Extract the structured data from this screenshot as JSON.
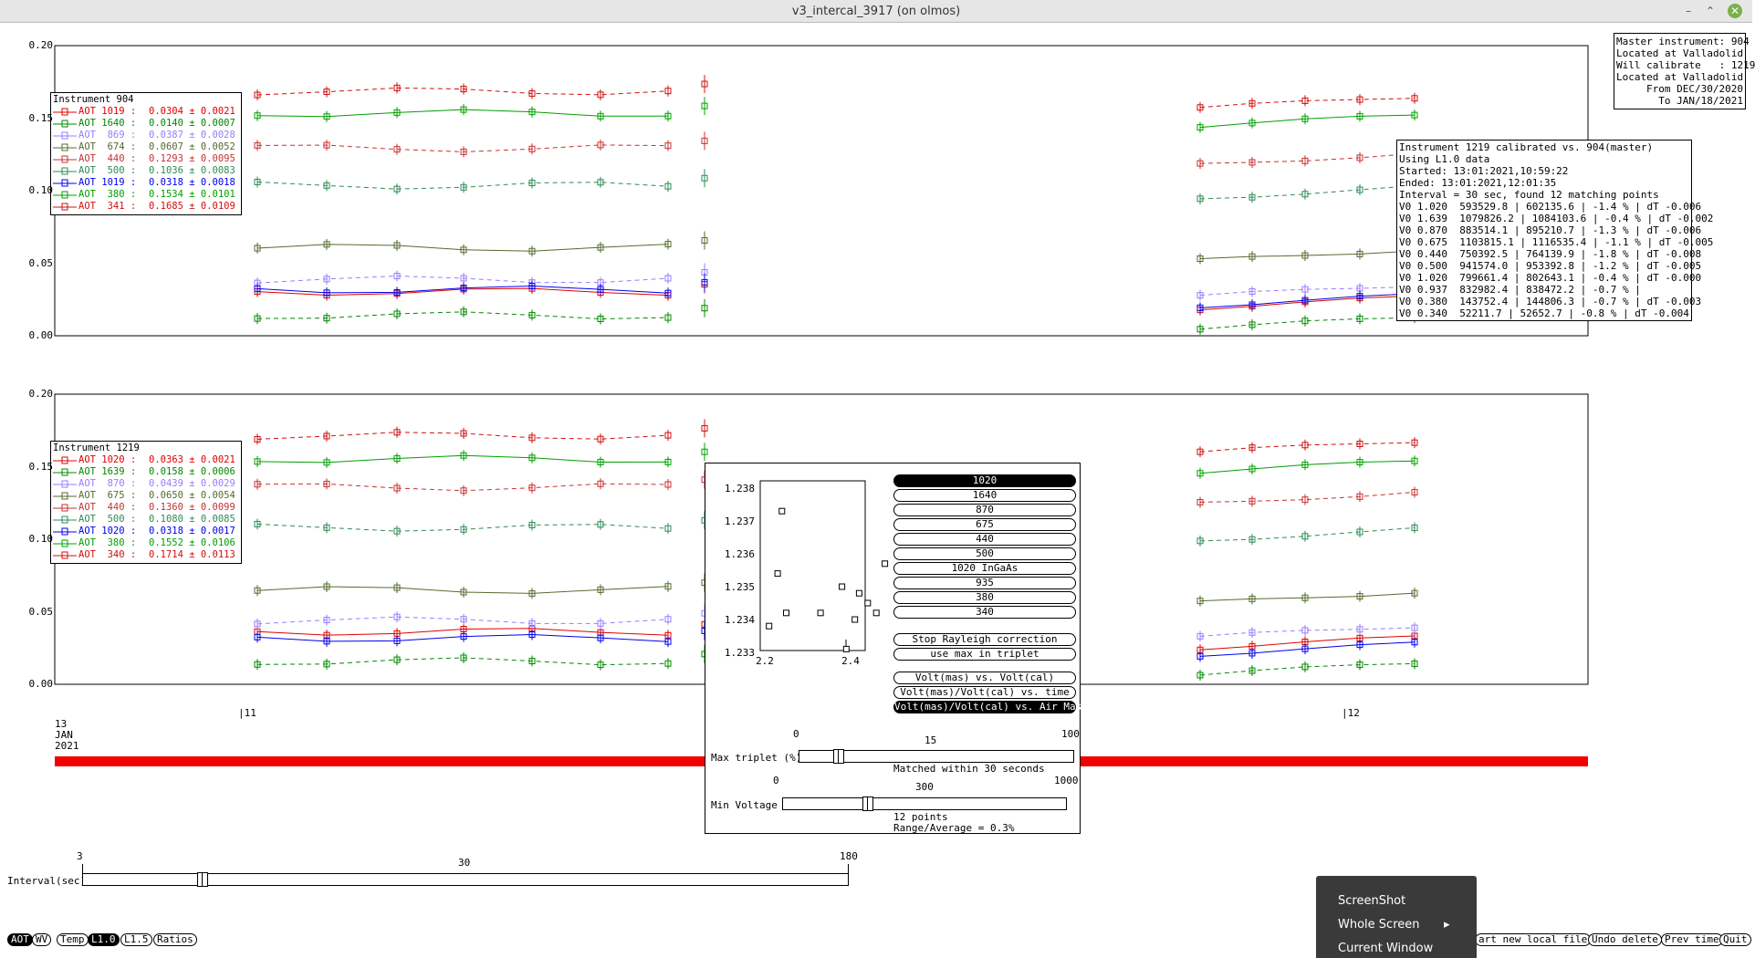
{
  "window": {
    "title": "v3_intercal_3917 (on olmos)"
  },
  "yticks": [
    "0.20",
    "0.15",
    "0.10",
    "0.05",
    "0.00"
  ],
  "xaxis": {
    "day_label": "13\nJAN\n2021",
    "ticks": [
      "|11",
      "|12"
    ]
  },
  "legend_top": {
    "title": "Instrument 904",
    "rows": [
      {
        "name": "AOT 1019 :",
        "value": "0.0304 ± 0.0021",
        "color": "#e00000"
      },
      {
        "name": "AOT 1640 :",
        "value": "0.0140 ± 0.0007",
        "color": "#008800"
      },
      {
        "name": "AOT  869 :",
        "value": "0.0387 ± 0.0028",
        "color": "#9b7bff"
      },
      {
        "name": "AOT  674 :",
        "value": "0.0607 ± 0.0052",
        "color": "#556b2f"
      },
      {
        "name": "AOT  440 :",
        "value": "0.1293 ± 0.0095",
        "color": "#c83232"
      },
      {
        "name": "AOT  500 :",
        "value": "0.1036 ± 0.0083",
        "color": "#2e8b57"
      },
      {
        "name": "AOT 1019 :",
        "value": "0.0318 ± 0.0018",
        "color": "#0000ee"
      },
      {
        "name": "AOT  380 :",
        "value": "0.1534 ± 0.0101",
        "color": "#00a000"
      },
      {
        "name": "AOT  341 :",
        "value": "0.1685 ± 0.0109",
        "color": "#d01010"
      }
    ]
  },
  "legend_bottom": {
    "title": "Instrument 1219",
    "rows": [
      {
        "name": "AOT 1020 :",
        "value": "0.0363 ± 0.0021",
        "color": "#e00000"
      },
      {
        "name": "AOT 1639 :",
        "value": "0.0158 ± 0.0006",
        "color": "#008800"
      },
      {
        "name": "AOT  870 :",
        "value": "0.0439 ± 0.0029",
        "color": "#9b7bff"
      },
      {
        "name": "AOT  675 :",
        "value": "0.0650 ± 0.0054",
        "color": "#556b2f"
      },
      {
        "name": "AOT  440 :",
        "value": "0.1360 ± 0.0099",
        "color": "#c83232"
      },
      {
        "name": "AOT  500 :",
        "value": "0.1080 ± 0.0085",
        "color": "#2e8b57"
      },
      {
        "name": "AOT 1020 :",
        "value": "0.0318 ± 0.0017",
        "color": "#0000ee"
      },
      {
        "name": "AOT  380 :",
        "value": "0.1552 ± 0.0106",
        "color": "#00a000"
      },
      {
        "name": "AOT  340 :",
        "value": "0.1714 ± 0.0113",
        "color": "#d01010"
      }
    ]
  },
  "master_info": [
    "Master instrument: 904",
    "Located at Valladolid",
    "Will calibrate   : 1219",
    "Located at Valladolid",
    "From DEC/30/2020",
    "To JAN/18/2021"
  ],
  "calib_info": [
    "Instrument 1219 calibrated vs. 904(master)",
    "Using L1.0 data",
    "Started: 13:01:2021,10:59:22",
    "Ended: 13:01:2021,12:01:35",
    "Interval = 30 sec, found 12 matching points",
    "V0 1.020  593529.8 | 602135.6 | -1.4 % | dT -0.006",
    "V0 1.639  1079826.2 | 1084103.6 | -0.4 % | dT -0.002",
    "V0 0.870  883514.1 | 895210.7 | -1.3 % | dT -0.006",
    "V0 0.675  1103815.1 | 1116535.4 | -1.1 % | dT -0.005",
    "V0 0.440  750392.5 | 764139.9 | -1.8 % | dT -0.008",
    "V0 0.500  941574.0 | 953392.8 | -1.2 % | dT -0.005",
    "V0 1.020  799661.4 | 802643.1 | -0.4 % | dT -0.000",
    "V0 0.937  832982.4 | 838472.2 | -0.7 % |",
    "V0 0.380  143752.4 | 144806.3 | -0.7 % | dT -0.003",
    "V0 0.340  52211.7 | 52652.7 | -0.8 % | dT -0.004"
  ],
  "interval_slider": {
    "label": "Interval(sec)",
    "min": "3",
    "mid": "30",
    "max": "180",
    "value": 30
  },
  "popup": {
    "scatter": {
      "yticks": [
        "1.238",
        "1.237",
        "1.236",
        "1.235",
        "1.234",
        "1.233"
      ],
      "xticks": [
        "2.2",
        "2.4"
      ],
      "points": [
        [
          2.21,
          1.2338
        ],
        [
          2.24,
          1.2373
        ],
        [
          2.23,
          1.2354
        ],
        [
          2.25,
          1.2342
        ],
        [
          2.33,
          1.2342
        ],
        [
          2.38,
          1.235
        ],
        [
          2.39,
          1.2331
        ],
        [
          2.41,
          1.234
        ],
        [
          2.42,
          1.2348
        ],
        [
          2.44,
          1.2345
        ],
        [
          2.46,
          1.2342
        ],
        [
          2.48,
          1.2357
        ]
      ]
    },
    "wavelength_buttons": [
      "1020",
      "1640",
      "870",
      "675",
      "440",
      "500",
      "1020 InGaAs",
      "935",
      "380",
      "340"
    ],
    "selected_wavelength": "1020",
    "option_buttons": [
      "Stop Rayleigh correction",
      "use max in triplet"
    ],
    "plot_mode_buttons": [
      "Volt(mas) vs. Volt(cal)",
      "Volt(mas)/Volt(cal) vs. time",
      "Volt(mas)/Volt(cal) vs. Air Mass"
    ],
    "selected_plot_mode": "Volt(mas)/Volt(cal) vs. Air Mass",
    "max_triplet": {
      "label": "Max triplet (%)",
      "min": "0",
      "mid": "15",
      "max": "100",
      "value": 15,
      "note": "Matched within 30 seconds"
    },
    "min_voltage": {
      "label": "Min Voltage",
      "min": "0",
      "mid": "300",
      "max": "1000",
      "value": 300,
      "note1": "12 points",
      "note2": "Range/Average = 0.3%"
    }
  },
  "bottom_buttons": [
    "AOT",
    "WV",
    "Temp",
    "L1.0",
    "L1.5",
    "Ratios"
  ],
  "selected_bottom": [
    "AOT",
    "L1.0"
  ],
  "right_buttons": [
    "art new local file",
    "Undo delete",
    "Prev time",
    "Quit"
  ],
  "context_menu": {
    "items": [
      "ScreenShot",
      "Whole Screen",
      "Current Window"
    ]
  }
}
